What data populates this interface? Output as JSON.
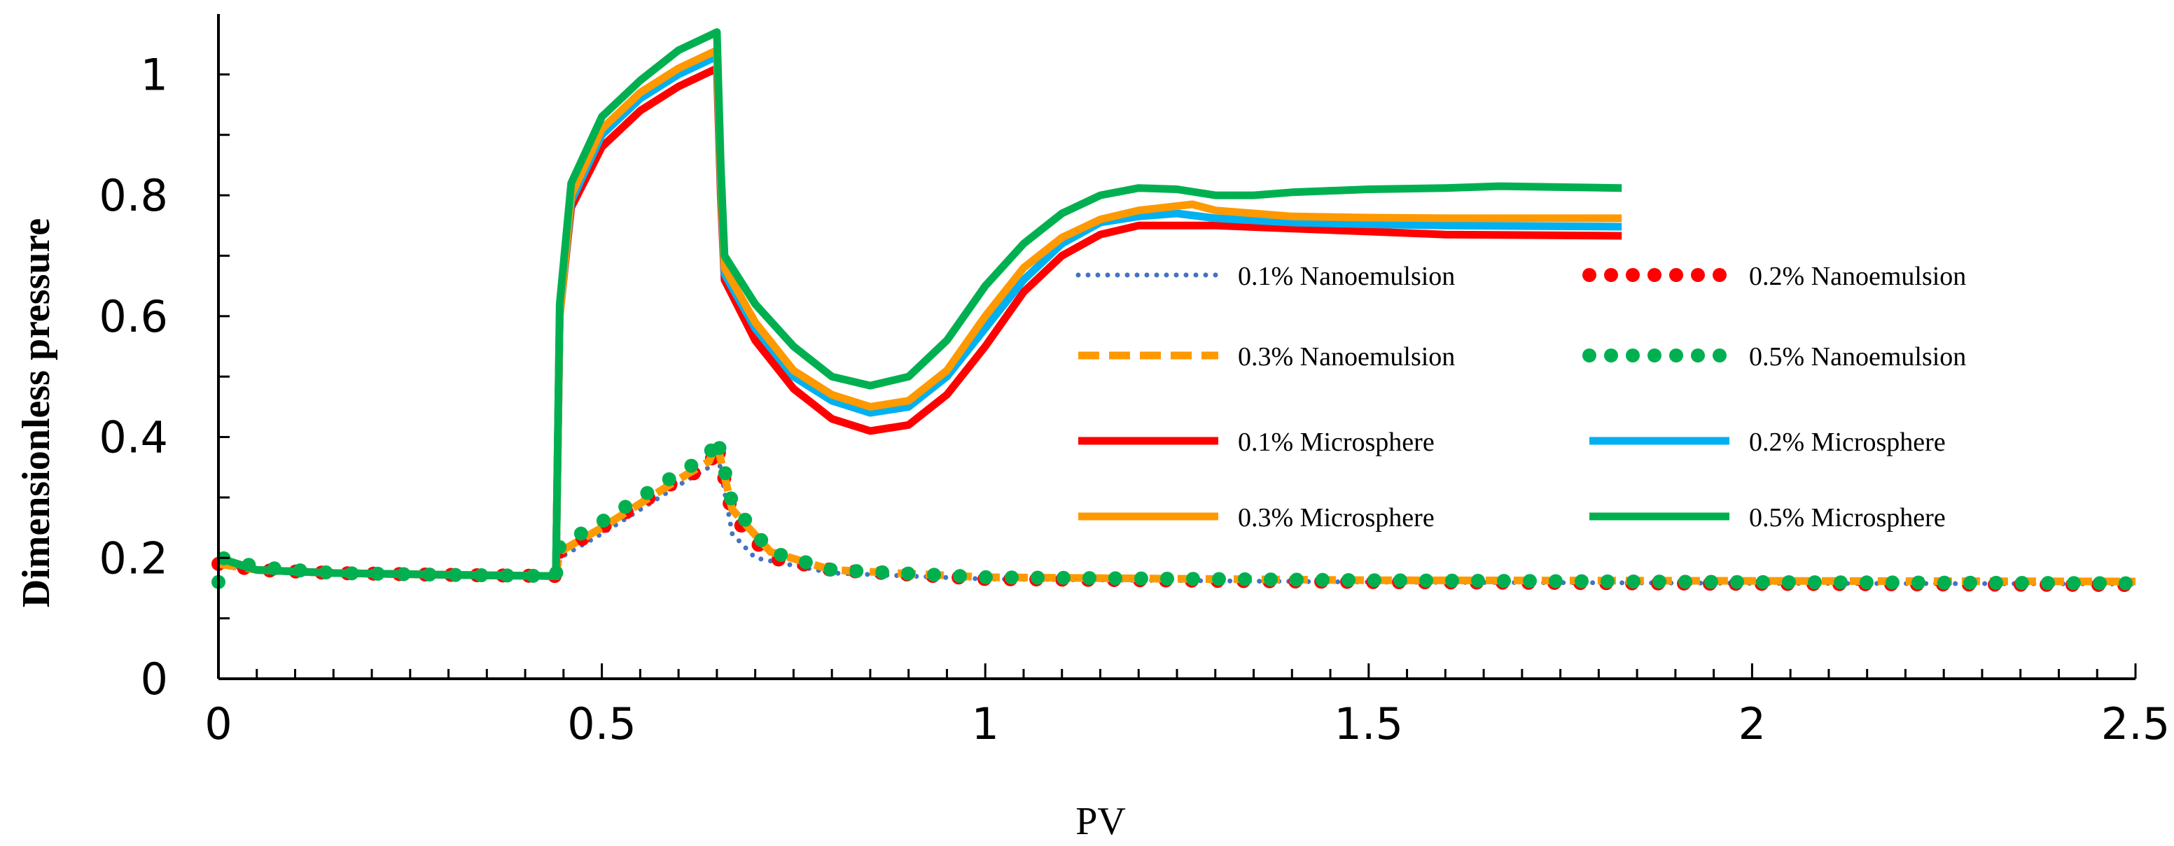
{
  "chart_data": {
    "type": "line",
    "title": "",
    "xlabel": "PV",
    "ylabel": "Dimensionless pressure",
    "xlim": [
      0,
      2.5
    ],
    "ylim": [
      0,
      1.1
    ],
    "x_ticks": [
      "0",
      "0.5",
      "1",
      "1.5",
      "2",
      "2.5"
    ],
    "y_ticks": [
      "0",
      "0.2",
      "0.4",
      "0.6",
      "0.8",
      "1"
    ],
    "legend_position": "center-right",
    "series": [
      {
        "name": "0.1% Nanoemulsion",
        "style": "dotted-small",
        "color": "#4472C4",
        "points": [
          [
            0,
            0.19
          ],
          [
            0.05,
            0.18
          ],
          [
            0.15,
            0.175
          ],
          [
            0.3,
            0.172
          ],
          [
            0.44,
            0.17
          ],
          [
            0.445,
            0.2
          ],
          [
            0.5,
            0.24
          ],
          [
            0.55,
            0.28
          ],
          [
            0.6,
            0.32
          ],
          [
            0.64,
            0.35
          ],
          [
            0.65,
            0.38
          ],
          [
            0.67,
            0.24
          ],
          [
            0.7,
            0.2
          ],
          [
            0.8,
            0.175
          ],
          [
            1.0,
            0.165
          ],
          [
            1.5,
            0.16
          ],
          [
            2.0,
            0.158
          ],
          [
            2.5,
            0.157
          ]
        ]
      },
      {
        "name": "0.2% Nanoemulsion",
        "style": "dotted-large",
        "color": "#FF0000",
        "points": [
          [
            0,
            0.19
          ],
          [
            0.05,
            0.18
          ],
          [
            0.15,
            0.175
          ],
          [
            0.3,
            0.172
          ],
          [
            0.44,
            0.17
          ],
          [
            0.445,
            0.21
          ],
          [
            0.5,
            0.25
          ],
          [
            0.55,
            0.29
          ],
          [
            0.6,
            0.33
          ],
          [
            0.64,
            0.35
          ],
          [
            0.65,
            0.39
          ],
          [
            0.67,
            0.27
          ],
          [
            0.72,
            0.2
          ],
          [
            0.8,
            0.18
          ],
          [
            1.0,
            0.165
          ],
          [
            1.5,
            0.16
          ],
          [
            2.0,
            0.157
          ],
          [
            2.5,
            0.155
          ]
        ]
      },
      {
        "name": "0.3% Nanoemulsion",
        "style": "dashed",
        "color": "#FF9900",
        "points": [
          [
            0,
            0.19
          ],
          [
            0.05,
            0.18
          ],
          [
            0.15,
            0.175
          ],
          [
            0.3,
            0.172
          ],
          [
            0.44,
            0.17
          ],
          [
            0.445,
            0.21
          ],
          [
            0.5,
            0.25
          ],
          [
            0.55,
            0.29
          ],
          [
            0.6,
            0.33
          ],
          [
            0.64,
            0.36
          ],
          [
            0.65,
            0.39
          ],
          [
            0.67,
            0.28
          ],
          [
            0.72,
            0.21
          ],
          [
            0.8,
            0.18
          ],
          [
            1.0,
            0.168
          ],
          [
            1.5,
            0.163
          ],
          [
            2.0,
            0.162
          ],
          [
            2.5,
            0.161
          ]
        ]
      },
      {
        "name": "0.5% Nanoemulsion",
        "style": "dotted-large",
        "color": "#00B050",
        "points": [
          [
            0,
            0.16
          ],
          [
            0.005,
            0.2
          ],
          [
            0.05,
            0.185
          ],
          [
            0.15,
            0.175
          ],
          [
            0.3,
            0.172
          ],
          [
            0.44,
            0.17
          ],
          [
            0.445,
            0.22
          ],
          [
            0.5,
            0.26
          ],
          [
            0.55,
            0.3
          ],
          [
            0.6,
            0.34
          ],
          [
            0.64,
            0.37
          ],
          [
            0.65,
            0.4
          ],
          [
            0.67,
            0.29
          ],
          [
            0.72,
            0.21
          ],
          [
            0.8,
            0.18
          ],
          [
            1.0,
            0.168
          ],
          [
            1.5,
            0.163
          ],
          [
            2.0,
            0.16
          ],
          [
            2.5,
            0.158
          ]
        ]
      },
      {
        "name": "0.1% Microsphere",
        "style": "solid",
        "color": "#FF0000",
        "points": [
          [
            0,
            0.2
          ],
          [
            0.05,
            0.18
          ],
          [
            0.15,
            0.175
          ],
          [
            0.3,
            0.172
          ],
          [
            0.44,
            0.17
          ],
          [
            0.445,
            0.6
          ],
          [
            0.46,
            0.78
          ],
          [
            0.5,
            0.88
          ],
          [
            0.55,
            0.94
          ],
          [
            0.6,
            0.98
          ],
          [
            0.65,
            1.01
          ],
          [
            0.655,
            0.8
          ],
          [
            0.66,
            0.66
          ],
          [
            0.7,
            0.56
          ],
          [
            0.75,
            0.48
          ],
          [
            0.8,
            0.43
          ],
          [
            0.85,
            0.41
          ],
          [
            0.9,
            0.42
          ],
          [
            0.95,
            0.47
          ],
          [
            1.0,
            0.55
          ],
          [
            1.05,
            0.64
          ],
          [
            1.1,
            0.7
          ],
          [
            1.15,
            0.735
          ],
          [
            1.2,
            0.75
          ],
          [
            1.3,
            0.75
          ],
          [
            1.4,
            0.745
          ],
          [
            1.5,
            0.74
          ],
          [
            1.6,
            0.735
          ],
          [
            1.83,
            0.733
          ]
        ]
      },
      {
        "name": "0.2% Microsphere",
        "style": "solid",
        "color": "#00B0F0",
        "points": [
          [
            0,
            0.2
          ],
          [
            0.05,
            0.18
          ],
          [
            0.15,
            0.175
          ],
          [
            0.3,
            0.172
          ],
          [
            0.44,
            0.17
          ],
          [
            0.445,
            0.6
          ],
          [
            0.46,
            0.79
          ],
          [
            0.5,
            0.9
          ],
          [
            0.55,
            0.96
          ],
          [
            0.6,
            1.0
          ],
          [
            0.65,
            1.03
          ],
          [
            0.655,
            0.82
          ],
          [
            0.66,
            0.67
          ],
          [
            0.7,
            0.58
          ],
          [
            0.75,
            0.5
          ],
          [
            0.8,
            0.46
          ],
          [
            0.85,
            0.44
          ],
          [
            0.9,
            0.45
          ],
          [
            0.95,
            0.5
          ],
          [
            1.0,
            0.58
          ],
          [
            1.05,
            0.66
          ],
          [
            1.1,
            0.72
          ],
          [
            1.15,
            0.755
          ],
          [
            1.2,
            0.765
          ],
          [
            1.25,
            0.77
          ],
          [
            1.3,
            0.762
          ],
          [
            1.4,
            0.755
          ],
          [
            1.5,
            0.752
          ],
          [
            1.6,
            0.75
          ],
          [
            1.83,
            0.748
          ]
        ]
      },
      {
        "name": "0.3% Microsphere",
        "style": "solid",
        "color": "#FF9900",
        "points": [
          [
            0,
            0.2
          ],
          [
            0.05,
            0.18
          ],
          [
            0.15,
            0.175
          ],
          [
            0.3,
            0.172
          ],
          [
            0.44,
            0.17
          ],
          [
            0.445,
            0.6
          ],
          [
            0.46,
            0.8
          ],
          [
            0.5,
            0.91
          ],
          [
            0.55,
            0.97
          ],
          [
            0.6,
            1.01
          ],
          [
            0.65,
            1.04
          ],
          [
            0.655,
            0.83
          ],
          [
            0.66,
            0.68
          ],
          [
            0.7,
            0.59
          ],
          [
            0.75,
            0.51
          ],
          [
            0.8,
            0.47
          ],
          [
            0.85,
            0.45
          ],
          [
            0.9,
            0.46
          ],
          [
            0.95,
            0.51
          ],
          [
            1.0,
            0.6
          ],
          [
            1.05,
            0.68
          ],
          [
            1.1,
            0.73
          ],
          [
            1.15,
            0.76
          ],
          [
            1.2,
            0.775
          ],
          [
            1.27,
            0.785
          ],
          [
            1.3,
            0.775
          ],
          [
            1.4,
            0.765
          ],
          [
            1.5,
            0.763
          ],
          [
            1.6,
            0.762
          ],
          [
            1.83,
            0.762
          ]
        ]
      },
      {
        "name": "0.5% Microsphere",
        "style": "solid",
        "color": "#00B050",
        "points": [
          [
            0,
            0.2
          ],
          [
            0.05,
            0.18
          ],
          [
            0.15,
            0.175
          ],
          [
            0.3,
            0.172
          ],
          [
            0.44,
            0.17
          ],
          [
            0.445,
            0.62
          ],
          [
            0.46,
            0.82
          ],
          [
            0.5,
            0.93
          ],
          [
            0.55,
            0.99
          ],
          [
            0.6,
            1.04
          ],
          [
            0.65,
            1.07
          ],
          [
            0.655,
            0.85
          ],
          [
            0.66,
            0.7
          ],
          [
            0.7,
            0.62
          ],
          [
            0.75,
            0.55
          ],
          [
            0.8,
            0.5
          ],
          [
            0.85,
            0.485
          ],
          [
            0.9,
            0.5
          ],
          [
            0.95,
            0.56
          ],
          [
            1.0,
            0.65
          ],
          [
            1.05,
            0.72
          ],
          [
            1.1,
            0.77
          ],
          [
            1.15,
            0.8
          ],
          [
            1.2,
            0.812
          ],
          [
            1.25,
            0.81
          ],
          [
            1.3,
            0.8
          ],
          [
            1.35,
            0.8
          ],
          [
            1.4,
            0.805
          ],
          [
            1.5,
            0.81
          ],
          [
            1.6,
            0.812
          ],
          [
            1.67,
            0.815
          ],
          [
            1.83,
            0.812
          ]
        ]
      }
    ]
  }
}
